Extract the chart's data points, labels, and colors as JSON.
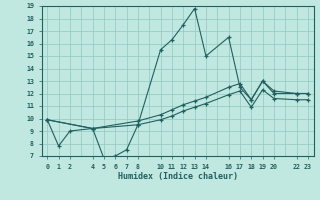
{
  "xlabel": "Humidex (Indice chaleur)",
  "bg_color": "#c0e8e0",
  "grid_color": "#90c8c0",
  "line_color": "#206060",
  "line1_x": [
    0,
    1,
    2,
    4,
    5,
    6,
    7,
    8,
    10,
    11,
    12,
    13,
    14,
    16,
    17,
    18,
    19,
    20,
    22,
    23
  ],
  "line1_y": [
    9.9,
    7.8,
    9.0,
    9.2,
    6.8,
    7.0,
    7.5,
    9.5,
    15.5,
    16.3,
    17.5,
    18.8,
    15.0,
    16.5,
    12.5,
    11.5,
    13.0,
    12.0,
    12.0,
    12.0
  ],
  "line2_x": [
    0,
    4,
    8,
    10,
    11,
    12,
    13,
    14,
    16,
    17,
    18,
    19,
    20,
    22,
    23
  ],
  "line2_y": [
    9.9,
    9.2,
    9.8,
    10.3,
    10.7,
    11.1,
    11.4,
    11.7,
    12.5,
    12.8,
    11.5,
    13.0,
    12.2,
    12.0,
    12.0
  ],
  "line3_x": [
    0,
    4,
    8,
    10,
    11,
    12,
    13,
    14,
    16,
    17,
    18,
    19,
    20,
    22,
    23
  ],
  "line3_y": [
    9.9,
    9.2,
    9.5,
    9.9,
    10.2,
    10.6,
    10.9,
    11.2,
    11.9,
    12.2,
    10.9,
    12.3,
    11.6,
    11.5,
    11.5
  ],
  "ylim": [
    7,
    19
  ],
  "xlim": [
    -0.5,
    23.5
  ],
  "yticks": [
    7,
    8,
    9,
    10,
    11,
    12,
    13,
    14,
    15,
    16,
    17,
    18,
    19
  ],
  "xtick_vals": [
    0,
    1,
    2,
    4,
    5,
    6,
    7,
    8,
    10,
    11,
    12,
    13,
    14,
    16,
    17,
    18,
    19,
    20,
    22,
    23
  ],
  "xtick_labels": [
    "0",
    "1",
    "2",
    "4",
    "5",
    "6",
    "7",
    "8",
    "10",
    "11",
    "12",
    "13",
    "14",
    "16",
    "17",
    "18",
    "19",
    "20",
    "22",
    "23"
  ],
  "grid_xticks": [
    0,
    1,
    2,
    3,
    4,
    5,
    6,
    7,
    8,
    9,
    10,
    11,
    12,
    13,
    14,
    15,
    16,
    17,
    18,
    19,
    20,
    21,
    22,
    23
  ]
}
